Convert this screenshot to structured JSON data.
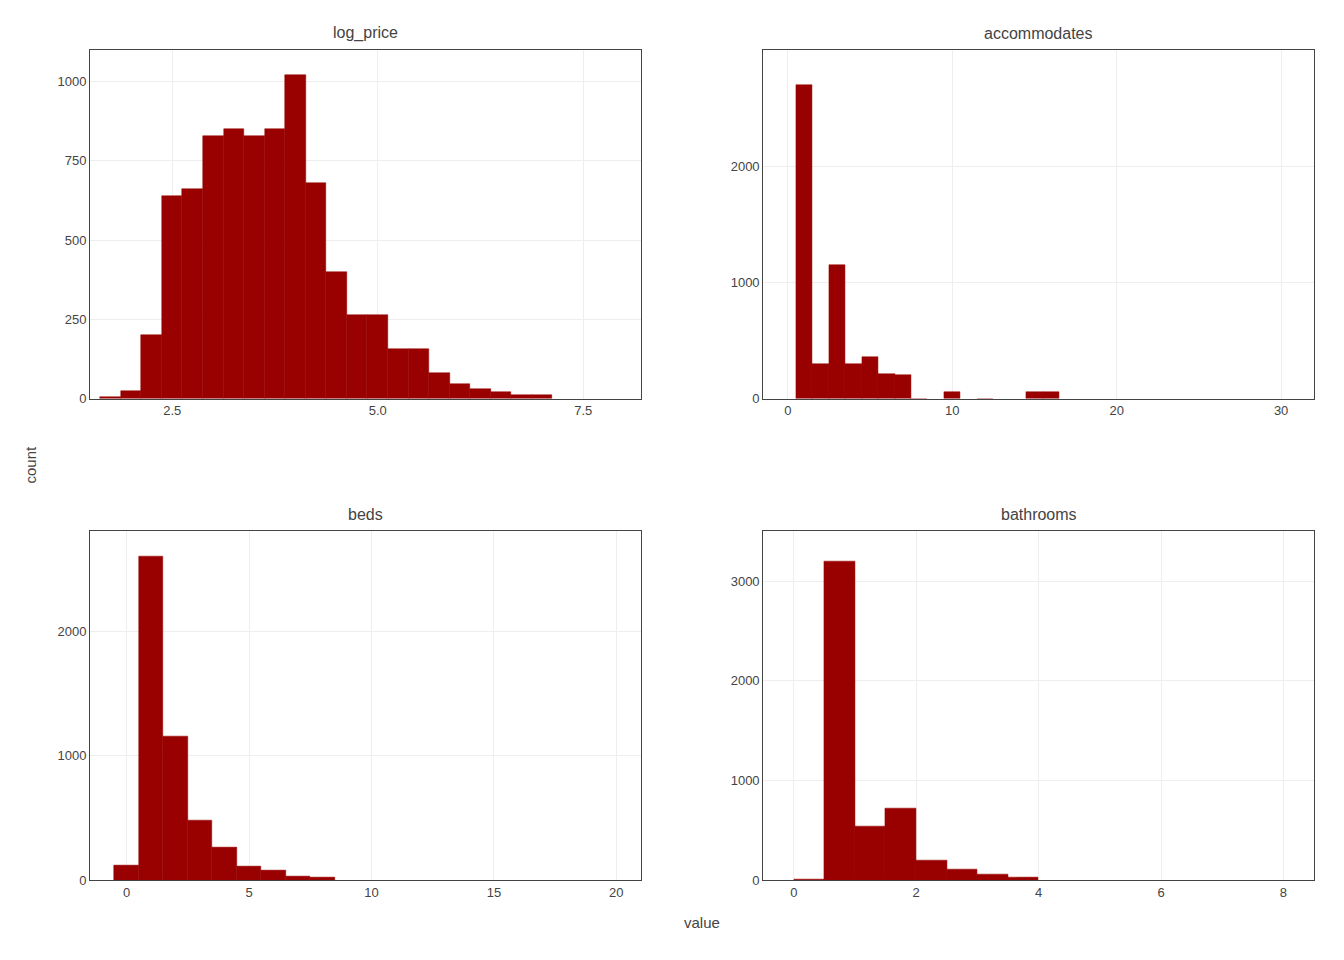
{
  "xlabel": "value",
  "ylabel": "count",
  "chart_data": [
    {
      "type": "bar",
      "title": "log_price",
      "x": [
        1.75,
        2.0,
        2.25,
        2.5,
        2.75,
        3.0,
        3.25,
        3.5,
        3.75,
        4.0,
        4.25,
        4.5,
        4.75,
        5.0,
        5.25,
        5.5,
        5.75,
        6.0,
        6.25,
        6.5,
        6.75,
        7.0
      ],
      "values": [
        5,
        25,
        200,
        640,
        660,
        830,
        850,
        830,
        850,
        1020,
        680,
        400,
        265,
        265,
        155,
        155,
        80,
        45,
        30,
        20,
        10,
        10
      ],
      "color": "#990000",
      "xlim": [
        1.5,
        8.2
      ],
      "xticks": [
        2.5,
        {
          "value": 5.0,
          "label": "5.0"
        },
        7.5
      ],
      "ylim": [
        0,
        1100
      ],
      "yticks": [
        0,
        250,
        500,
        750,
        1000
      ],
      "grid": true
    },
    {
      "type": "bar",
      "title": "accommodates",
      "x": [
        1,
        2,
        3,
        4,
        5,
        6,
        7,
        8,
        10,
        12,
        15,
        16
      ],
      "values": [
        2700,
        300,
        1150,
        300,
        360,
        210,
        200,
        0,
        60,
        0,
        60,
        55
      ],
      "color": "#990000",
      "xlim": [
        -1.5,
        32
      ],
      "xticks": [
        0,
        10,
        20,
        30
      ],
      "ylim": [
        0,
        3000
      ],
      "yticks": [
        0,
        1000,
        2000
      ],
      "grid": true
    },
    {
      "type": "bar",
      "title": "beds",
      "x": [
        0,
        1,
        2,
        3,
        4,
        5,
        6,
        7,
        8
      ],
      "values": [
        120,
        2600,
        1150,
        480,
        260,
        110,
        75,
        30,
        20
      ],
      "color": "#990000",
      "xlim": [
        -1.5,
        21
      ],
      "xticks": [
        0,
        5,
        10,
        15,
        20
      ],
      "ylim": [
        0,
        2800
      ],
      "yticks": [
        0,
        1000,
        2000
      ],
      "grid": true
    },
    {
      "type": "bar",
      "title": "bathrooms",
      "x": [
        0.25,
        0.75,
        1.25,
        1.75,
        2.25,
        2.75,
        3.25,
        3.75
      ],
      "values": [
        10,
        3200,
        540,
        720,
        200,
        110,
        60,
        30
      ],
      "color": "#990000",
      "xlim": [
        -0.5,
        8.5
      ],
      "xticks": [
        0,
        2,
        4,
        6,
        8
      ],
      "ylim": [
        0,
        3500
      ],
      "yticks": [
        0,
        1000,
        2000,
        3000
      ],
      "grid": true
    }
  ]
}
